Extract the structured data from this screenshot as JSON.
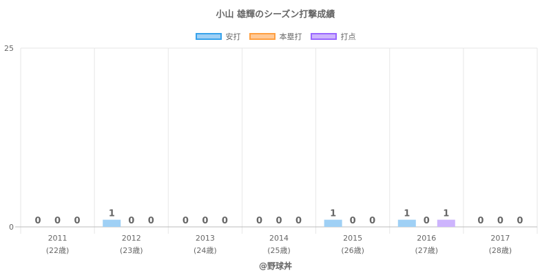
{
  "title": "小山 雄輝のシーズン打撃成績",
  "footer": "@野球丼",
  "chart_data": {
    "type": "bar",
    "title": "小山 雄輝のシーズン打撃成績",
    "categories": [
      "2011",
      "2012",
      "2013",
      "2014",
      "2015",
      "2016",
      "2017"
    ],
    "sub_labels": [
      "(22歳)",
      "(23歳)",
      "(24歳)",
      "(25歳)",
      "(26歳)",
      "(27歳)",
      "(28歳)"
    ],
    "ylim": [
      0,
      25
    ],
    "y_ticks": [
      "0",
      "25"
    ],
    "grid": true,
    "legend_position": "top",
    "series": [
      {
        "name": "安打",
        "values": [
          0,
          1,
          0,
          0,
          1,
          1,
          0
        ],
        "fill": "#9fd0f5",
        "stroke": "#36a2eb"
      },
      {
        "name": "本塁打",
        "values": [
          0,
          0,
          0,
          0,
          0,
          0,
          0
        ],
        "fill": "#ffc997",
        "stroke": "#ff9f40"
      },
      {
        "name": "打点",
        "values": [
          0,
          0,
          0,
          0,
          0,
          1,
          0
        ],
        "fill": "#cdb4fd",
        "stroke": "#9966ff"
      }
    ]
  }
}
